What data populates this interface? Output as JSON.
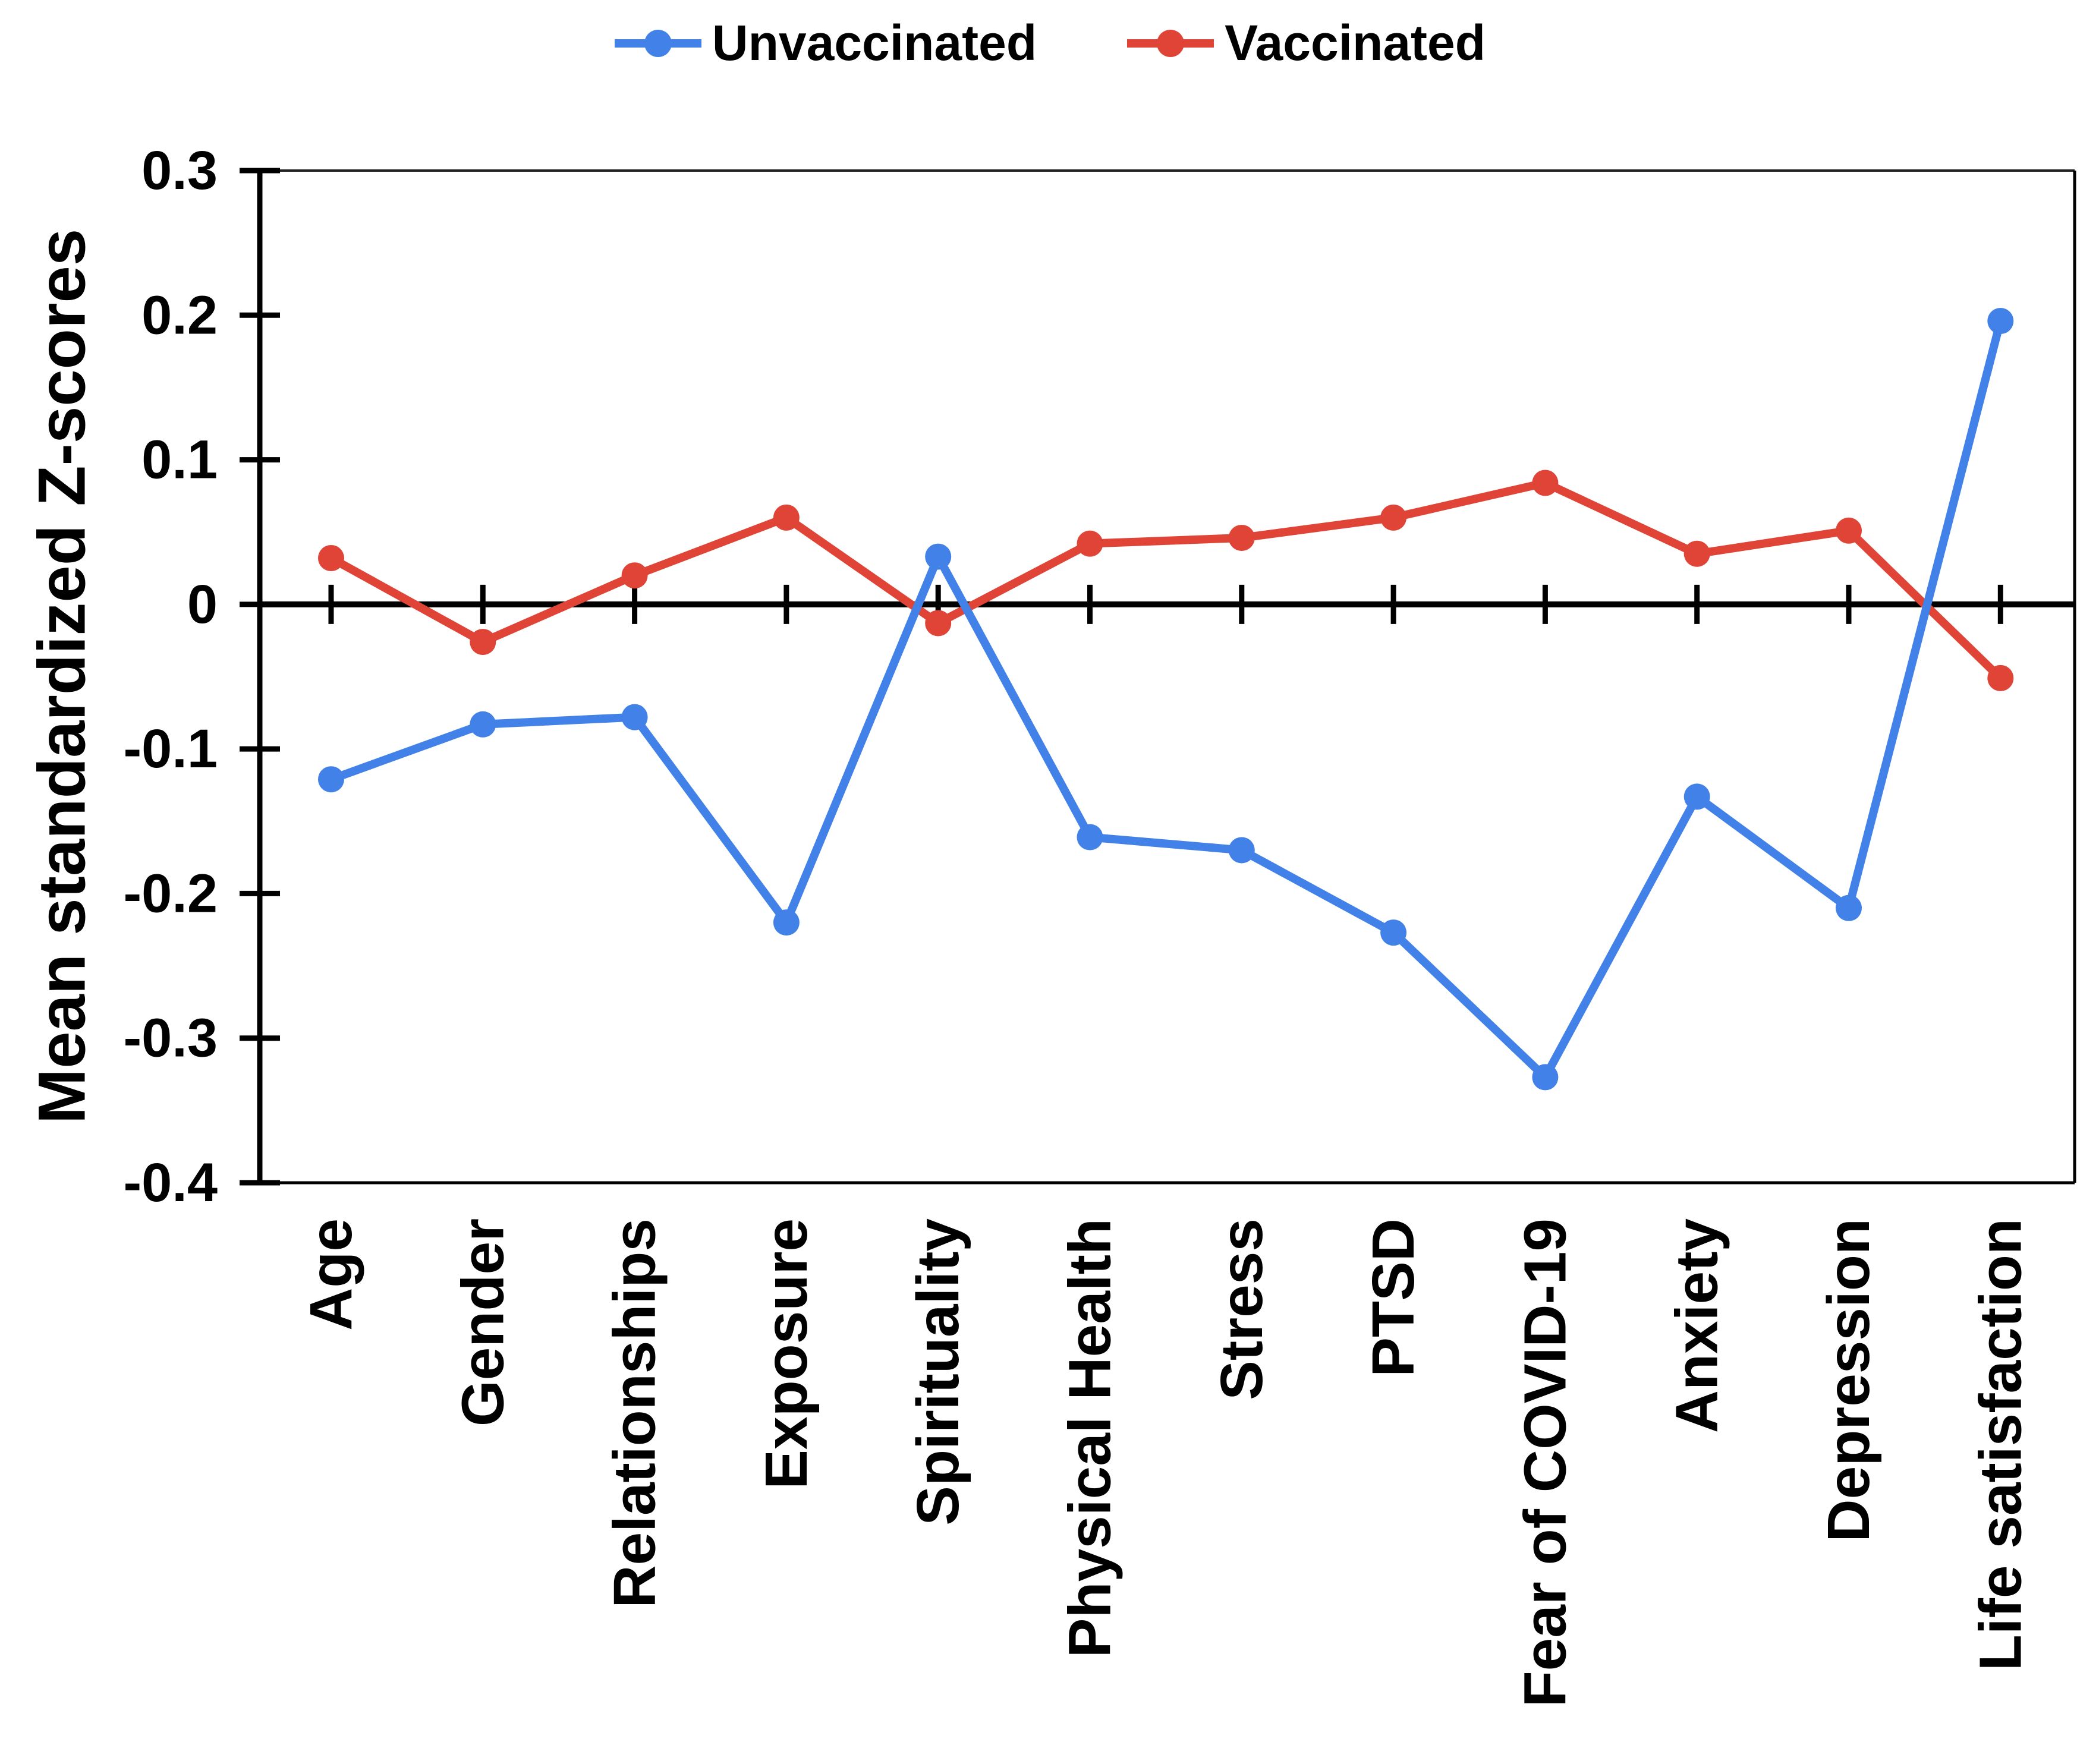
{
  "page": {
    "background": "#ffffff"
  },
  "legend": {
    "items": [
      {
        "label": "Unvaccinated",
        "color": "#4181E8",
        "marker": "line-with-circle"
      },
      {
        "label": "Vaccinated",
        "color": "#DF4437",
        "marker": "line-with-circle"
      }
    ]
  },
  "y_axis": {
    "title": "Mean standardized Z-scores",
    "tick_labels": [
      "0.3",
      "0.2",
      "0.1",
      "0",
      "-0.1",
      "-0.2",
      "-0.3",
      "-0.4"
    ]
  },
  "chart_data": {
    "type": "line",
    "categories": [
      "Age",
      "Gender",
      "Relationships",
      "Exposure",
      "Spirituality",
      "Physical Health",
      "Stress",
      "PTSD",
      "Fear of COVID-19",
      "Anxiety",
      "Depression",
      "Life satisfaction"
    ],
    "series": [
      {
        "name": "Unvaccinated",
        "color": "#4181E8",
        "values": [
          -0.121,
          -0.083,
          -0.078,
          -0.22,
          0.033,
          -0.161,
          -0.17,
          -0.227,
          -0.327,
          -0.133,
          -0.21,
          0.196
        ]
      },
      {
        "name": "Vaccinated",
        "color": "#DF4437",
        "values": [
          0.032,
          -0.026,
          0.02,
          0.06,
          -0.013,
          0.042,
          0.046,
          0.06,
          0.084,
          0.035,
          0.051,
          -0.051
        ]
      }
    ],
    "title": "",
    "xlabel": "",
    "ylabel": "Mean standardized Z-scores",
    "ylim": [
      -0.4,
      0.3
    ],
    "ytick_step": 0.1,
    "grid": false,
    "zero_line": true,
    "legend_position": "top",
    "marker": "circle",
    "axis_color": "#000000"
  }
}
